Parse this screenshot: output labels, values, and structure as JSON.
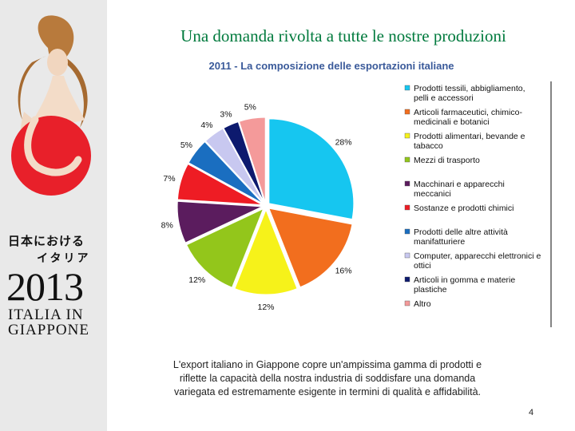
{
  "slide": {
    "title": "Una domanda rivolta a tutte le nostre produzioni",
    "caption_lines": [
      "L'export italiano in Giappone copre un'ampissima gamma di prodotti e",
      "riflette la capacità della nostra industria di soddisfare una domanda",
      "variegata ed estremamente esigente in termini di qualità e affidabilità."
    ],
    "page_number": "4"
  },
  "logo": {
    "japanese_line1": "日本における",
    "japanese_line2": "イタリア",
    "year": "2013",
    "name_line1": "ITALIA IN",
    "name_line2": "GIAPPONE"
  },
  "chart_data": {
    "type": "pie",
    "title": "2011 - La composizione delle esportazioni italiane",
    "legend_position": "right",
    "slices": [
      {
        "label": [
          "Prodotti tessili, abbigliamento,",
          "pelli e accessori"
        ],
        "value": 28,
        "display": "28%",
        "color": "#16c6f0"
      },
      {
        "label": [
          "Articoli farmaceutici, chimico-",
          "medicinali e botanici"
        ],
        "value": 16,
        "display": "16%",
        "color": "#f26e1e"
      },
      {
        "label": [
          "Prodotti alimentari, bevande e",
          "tabacco"
        ],
        "value": 12,
        "display": "12%",
        "color": "#f6f21a"
      },
      {
        "label": [
          "Mezzi di trasporto"
        ],
        "value": 12,
        "display": "12%",
        "color": "#93c61b"
      },
      {
        "label": [
          "Macchinari e apparecchi",
          "meccanici"
        ],
        "value": 8,
        "display": "8%",
        "color": "#5b1c5e"
      },
      {
        "label": [
          "Sostanze e prodotti chimici"
        ],
        "value": 7,
        "display": "7%",
        "color": "#ee1c24"
      },
      {
        "label": [
          "Prodotti delle altre attività",
          "manifatturiere"
        ],
        "value": 5,
        "display": "5%",
        "color": "#1a6ec0"
      },
      {
        "label": [
          "Computer, apparecchi elettronici e",
          "ottici"
        ],
        "value": 4,
        "display": "4%",
        "color": "#c8c8f0"
      },
      {
        "label": [
          "Articoli in gomma e materie",
          "plastiche"
        ],
        "value": 3,
        "display": "3%",
        "color": "#0d1a6e"
      },
      {
        "label": [
          "Altro"
        ],
        "value": 5,
        "display": "5%",
        "color": "#f49a9a"
      }
    ]
  }
}
